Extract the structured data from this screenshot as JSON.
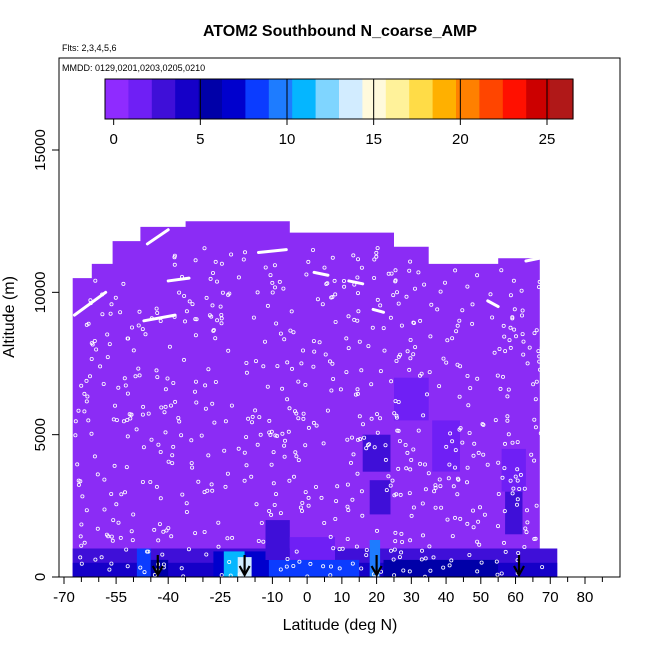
{
  "chart_data": {
    "type": "heatmap",
    "title": "ATOM2 Southbound N_coarse_AMP",
    "flights_note": "Flts: 2,3,4,5,6",
    "dates_note": "MMDD: 0129,0201,0203,0205,0210",
    "xlabel": "Latitude (deg N)",
    "ylabel": "Altitude (m)",
    "xlim": [
      -70,
      85
    ],
    "ylim": [
      0,
      17500
    ],
    "x_ticks": [
      -70,
      -55,
      -40,
      -25,
      -10,
      0,
      10,
      20,
      30,
      40,
      50,
      60,
      70,
      80
    ],
    "x_tick_labels": [
      "-70",
      "-55",
      "-40",
      "-25",
      "-10",
      "0",
      "10",
      "20",
      "30",
      "40",
      "50",
      "60",
      "70",
      "80"
    ],
    "y_ticks": [
      0,
      5000,
      10000,
      15000
    ],
    "y_tick_labels": [
      "0",
      "5000",
      "10000",
      "15000"
    ],
    "colorbar": {
      "min": -0.5,
      "max": 26.5,
      "ticks": [
        0,
        5,
        10,
        15,
        20,
        25
      ],
      "tick_labels": [
        "0",
        "5",
        "10",
        "15",
        "20",
        "25"
      ],
      "colors": [
        "#8f2bff",
        "#6f1ff5",
        "#3f0fd8",
        "#1500c8",
        "#0000a8",
        "#0000cd",
        "#0b3cff",
        "#1e7cff",
        "#05b6ff",
        "#7fd5ff",
        "#d2ecff",
        "#fffadc",
        "#fff29a",
        "#ffdc47",
        "#ffb000",
        "#ff8000",
        "#ff4500",
        "#ff1000",
        "#cc0000",
        "#b01818"
      ]
    },
    "background_color": "#8b2cf5",
    "coverage_outline": [
      [
        -67.5,
        0
      ],
      [
        -67.5,
        10500
      ],
      [
        -62,
        10500
      ],
      [
        -62,
        11000
      ],
      [
        -56,
        11000
      ],
      [
        -56,
        11800
      ],
      [
        -48,
        11800
      ],
      [
        -48,
        12300
      ],
      [
        -35,
        12300
      ],
      [
        -35,
        12500
      ],
      [
        -5,
        12500
      ],
      [
        -5,
        12100
      ],
      [
        25,
        12100
      ],
      [
        25,
        11600
      ],
      [
        35,
        11600
      ],
      [
        35,
        11000
      ],
      [
        55,
        11000
      ],
      [
        55,
        11200
      ],
      [
        67,
        11200
      ],
      [
        67,
        1000
      ],
      [
        72,
        1000
      ],
      [
        72,
        0
      ]
    ],
    "features": [
      {
        "x0": -67.5,
        "x1": 72,
        "y0": 0,
        "y1": 1000,
        "value": 3
      },
      {
        "x0": -67.5,
        "x1": 72,
        "y0": 0,
        "y1": 500,
        "value": 4
      },
      {
        "x0": -49,
        "x1": -45,
        "y0": 0,
        "y1": 1000,
        "value": 8
      },
      {
        "x0": -45,
        "x1": -40,
        "y0": 0,
        "y1": 600,
        "value": 6
      },
      {
        "x0": -27,
        "x1": -8,
        "y0": 0,
        "y1": 900,
        "value": 7
      },
      {
        "x0": -24,
        "x1": -18,
        "y0": 0,
        "y1": 900,
        "value": 11
      },
      {
        "x0": -20,
        "x1": -16,
        "y0": 0,
        "y1": 700,
        "value": 13
      },
      {
        "x0": -11,
        "x1": 15,
        "y0": 0,
        "y1": 600,
        "value": 8
      },
      {
        "x0": -12,
        "x1": -5,
        "y0": 600,
        "y1": 2000,
        "value": 3
      },
      {
        "x0": -5,
        "x1": 8,
        "y0": 600,
        "y1": 1400,
        "value": 2
      },
      {
        "x0": 18,
        "x1": 21,
        "y0": 0,
        "y1": 1300,
        "value": 9
      },
      {
        "x0": 22,
        "x1": 55,
        "y0": 0,
        "y1": 600,
        "value": 5
      },
      {
        "x0": 16,
        "x1": 24,
        "y0": 3700,
        "y1": 5000,
        "value": 3
      },
      {
        "x0": 18,
        "x1": 24,
        "y0": 2200,
        "y1": 3400,
        "value": 3
      },
      {
        "x0": 36,
        "x1": 44,
        "y0": 3700,
        "y1": 5500,
        "value": 2
      },
      {
        "x0": 57,
        "x1": 62,
        "y0": 1500,
        "y1": 3000,
        "value": 3
      },
      {
        "x0": 56,
        "x1": 63,
        "y0": 3000,
        "y1": 4500,
        "value": 1
      },
      {
        "x0": 25,
        "x1": 35,
        "y0": 5500,
        "y1": 7000,
        "value": 1
      }
    ],
    "sample_count": 700,
    "arrows_at_latitude": [
      -43,
      -18,
      20,
      61
    ]
  }
}
